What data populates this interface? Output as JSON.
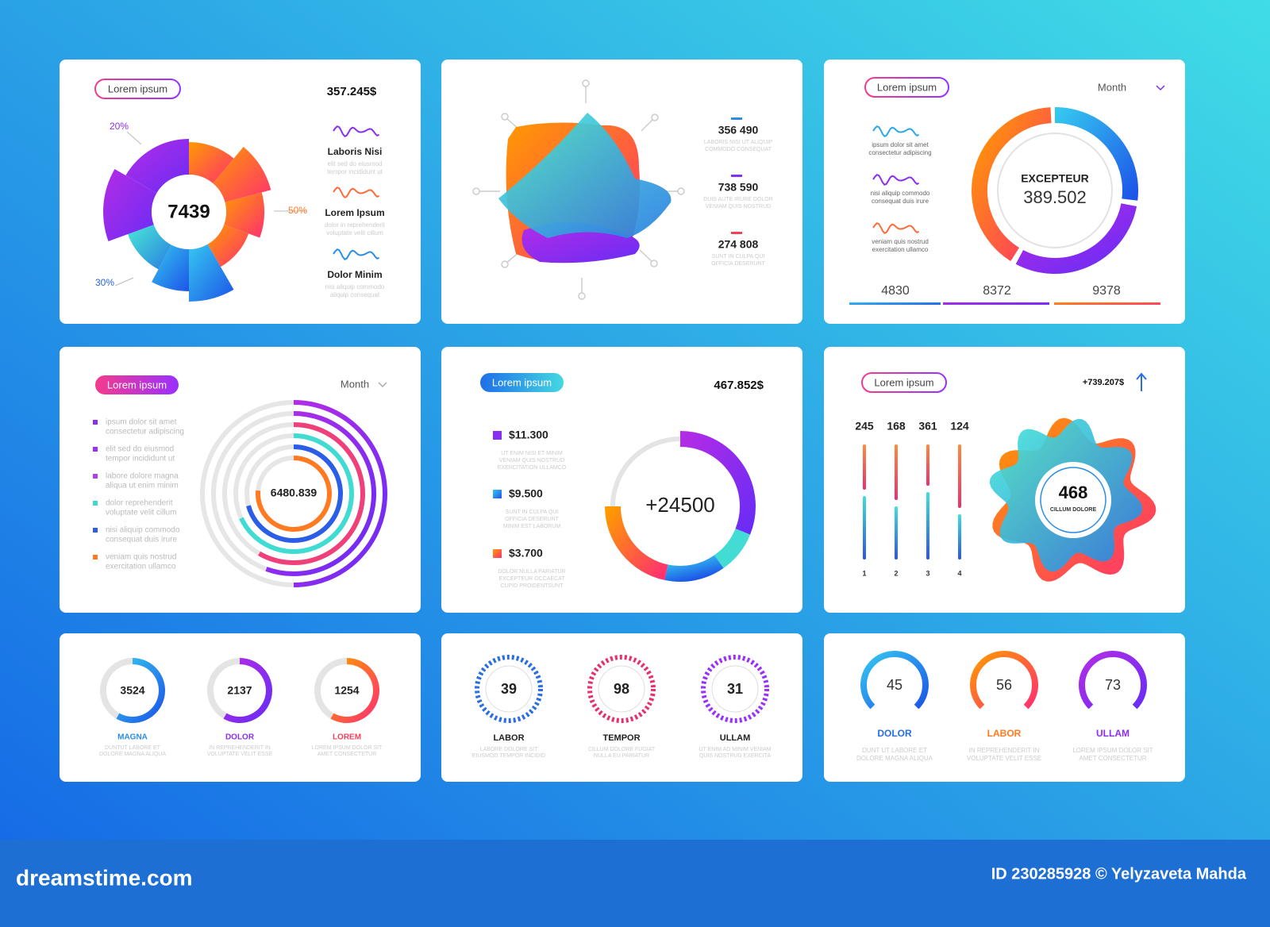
{
  "footer": {
    "site": "dreamstime.com",
    "credit": "ID 230285928 © Yelyzaveta Mahda"
  },
  "panel1": {
    "tag": "Lorem ipsum",
    "total": "357.245$",
    "center": "7439",
    "shares": [
      "20%",
      "50%",
      "30%"
    ],
    "items": [
      {
        "title": "Laboris Nisi",
        "lines": [
          "elit sed do eiusmod",
          "tempor incididunt ut"
        ]
      },
      {
        "title": "Lorem Ipsum",
        "lines": [
          "dolor in reprehenderit",
          "voluptate velit cillum"
        ]
      },
      {
        "title": "Dolor Minim",
        "lines": [
          "nisi aliquip commodo",
          "aliquip consequat"
        ]
      }
    ]
  },
  "panel2": {
    "items": [
      {
        "value": "356 490",
        "lines": [
          "LABORIS NISI UT ALIQUIP",
          "COMMODO CONSEQUAT"
        ]
      },
      {
        "value": "738 590",
        "lines": [
          "DUIS AUTE IRURE DOLOR",
          "VENIAM QUIS NOSTRUD"
        ]
      },
      {
        "value": "274 808",
        "lines": [
          "SUNT IN CULPA QUI",
          "OFFICIA DESERUNT"
        ]
      }
    ]
  },
  "panel3": {
    "tag": "Lorem ipsum",
    "period": "Month",
    "notes": [
      [
        "ipsum dolor sit amet",
        "consectetur adipiscing"
      ],
      [
        "nisi aliquip commodo",
        "consequat duis irure"
      ],
      [
        "veniam quis nostrud",
        "exercitation ullamco"
      ]
    ],
    "title": "EXCEPTEUR",
    "value": "389.502",
    "stats": [
      "4830",
      "8372",
      "9378"
    ]
  },
  "panel4": {
    "tag": "Lorem ipsum",
    "period": "Month",
    "legend": [
      [
        "ipsum dolor sit amet",
        "consectetur adipiscing"
      ],
      [
        "elit sed do eiusmod",
        "tempor incididunt ut"
      ],
      [
        "labore dolore magna",
        "aliqua ut enim minim"
      ],
      [
        "dolor reprehenderit",
        "voluptate velit cillum"
      ],
      [
        "nisi aliquip commodo",
        "consequat duis irure"
      ],
      [
        "veniam quis nostrud",
        "exercitation ullamco"
      ]
    ],
    "center": "6480.839"
  },
  "panel5": {
    "tag": "Lorem ipsum",
    "total": "467.852$",
    "center": "+24500",
    "items": [
      {
        "value": "$11.300",
        "lines": [
          "UT ENIM NISI ET MINIM",
          "VENIAM QUIS NOSTRUD",
          "EXERCITATION ULLAMCO"
        ]
      },
      {
        "value": "$9.500",
        "lines": [
          "SUNT IN CULPA QUI",
          "OFFICIA DESERUNT",
          "MINIM EST LABORUM"
        ]
      },
      {
        "value": "$3.700",
        "lines": [
          "DOLOR NULLA PARIATUR",
          "EXCEPTEUR OCCAECAT",
          "CUPID PROIDENTSUNT"
        ]
      }
    ]
  },
  "panel6": {
    "tag": "Lorem ipsum",
    "total": "+739.207$",
    "bars": [
      "245",
      "168",
      "361",
      "124"
    ],
    "indexes": [
      "1",
      "2",
      "3",
      "4"
    ],
    "value": "468",
    "caption": "CILLUM DOLORE"
  },
  "panel7": {
    "rings": [
      {
        "value": "3524",
        "label": "MAGNA",
        "lines": [
          "DUNTUT LABORE ET",
          "DOLORE MAGNA ALIQUA"
        ]
      },
      {
        "value": "2137",
        "label": "DOLOR",
        "lines": [
          "IN REPREHENDERIT IN",
          "VOLUPTATE VELIT ESSE"
        ]
      },
      {
        "value": "1254",
        "label": "LOREM",
        "lines": [
          "LOREM IPSUM DOLOR SIT",
          "AMET CONSECTETUR"
        ]
      }
    ]
  },
  "panel8": {
    "rings": [
      {
        "value": "39",
        "label": "LABOR",
        "lines": [
          "LABORE DOLORE SIT",
          "EIUSMOD TEMPOR INCIDID"
        ]
      },
      {
        "value": "98",
        "label": "TEMPOR",
        "lines": [
          "CILLUM DOLORE FUGIAT",
          "NULLA EU PARIATUR"
        ]
      },
      {
        "value": "31",
        "label": "ULLAM",
        "lines": [
          "UT ENIM AD MINIM VENIAM",
          "QUIS NOSTRUD EXERCITA"
        ]
      }
    ]
  },
  "panel9": {
    "gauges": [
      {
        "value": "45",
        "label": "DOLOR",
        "lines": [
          "DUNT UT LABORE ET",
          "DOLORE MAGNA ALIQUA"
        ]
      },
      {
        "value": "56",
        "label": "LABOR",
        "lines": [
          "IN REPREHENDERIT IN",
          "VOLUPTATE VELIT ESSE"
        ]
      },
      {
        "value": "73",
        "label": "ULLAM",
        "lines": [
          "LOREM IPSUM DOLOR SIT",
          "AMET CONSECTETUR"
        ]
      }
    ]
  }
}
